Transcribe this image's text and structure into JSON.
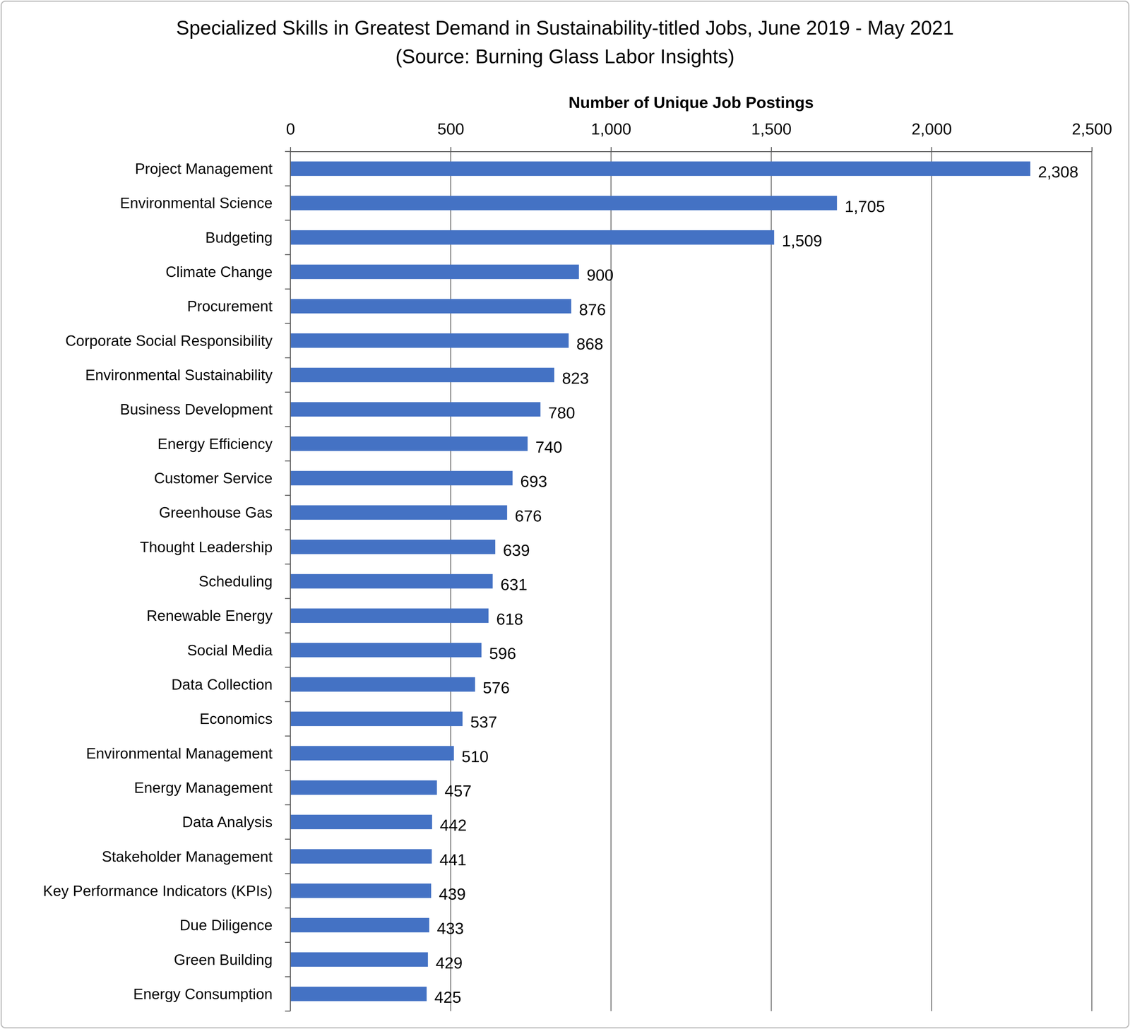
{
  "chart_data": {
    "type": "bar",
    "orientation": "horizontal",
    "title": "Specialized Skills in Greatest Demand in Sustainability-titled Jobs, June 2019 - May 2021",
    "subtitle": "(Source: Burning Glass Labor Insights)",
    "xlabel": "Number of Unique Job Postings",
    "categories": [
      "Project Management",
      "Environmental Science",
      "Budgeting",
      "Climate Change",
      "Procurement",
      "Corporate Social Responsibility",
      "Environmental Sustainability",
      "Business Development",
      "Energy Efficiency",
      "Customer Service",
      "Greenhouse Gas",
      "Thought Leadership",
      "Scheduling",
      "Renewable Energy",
      "Social Media",
      "Data Collection",
      "Economics",
      "Environmental Management",
      "Energy Management",
      "Data Analysis",
      "Stakeholder Management",
      "Key Performance Indicators (KPIs)",
      "Due Diligence",
      "Green Building",
      "Energy Consumption"
    ],
    "values": [
      2308,
      1705,
      1509,
      900,
      876,
      868,
      823,
      780,
      740,
      693,
      676,
      639,
      631,
      618,
      596,
      576,
      537,
      510,
      457,
      442,
      441,
      439,
      433,
      429,
      425
    ],
    "value_labels": [
      "2,308",
      "1,705",
      "1,509",
      "900",
      "876",
      "868",
      "823",
      "780",
      "740",
      "693",
      "676",
      "639",
      "631",
      "618",
      "596",
      "576",
      "537",
      "510",
      "457",
      "442",
      "441",
      "439",
      "433",
      "429",
      "425"
    ],
    "color": "#4472c4",
    "xlim": [
      0,
      2500
    ],
    "xticks": [
      0,
      500,
      {
        "value": 1000,
        "label": "1,000"
      },
      {
        "value": 1500,
        "label": "1,500"
      },
      {
        "value": 2000,
        "label": "2,000"
      },
      {
        "value": 2500,
        "label": "2,500"
      }
    ],
    "grid": true,
    "data_labels": true
  }
}
